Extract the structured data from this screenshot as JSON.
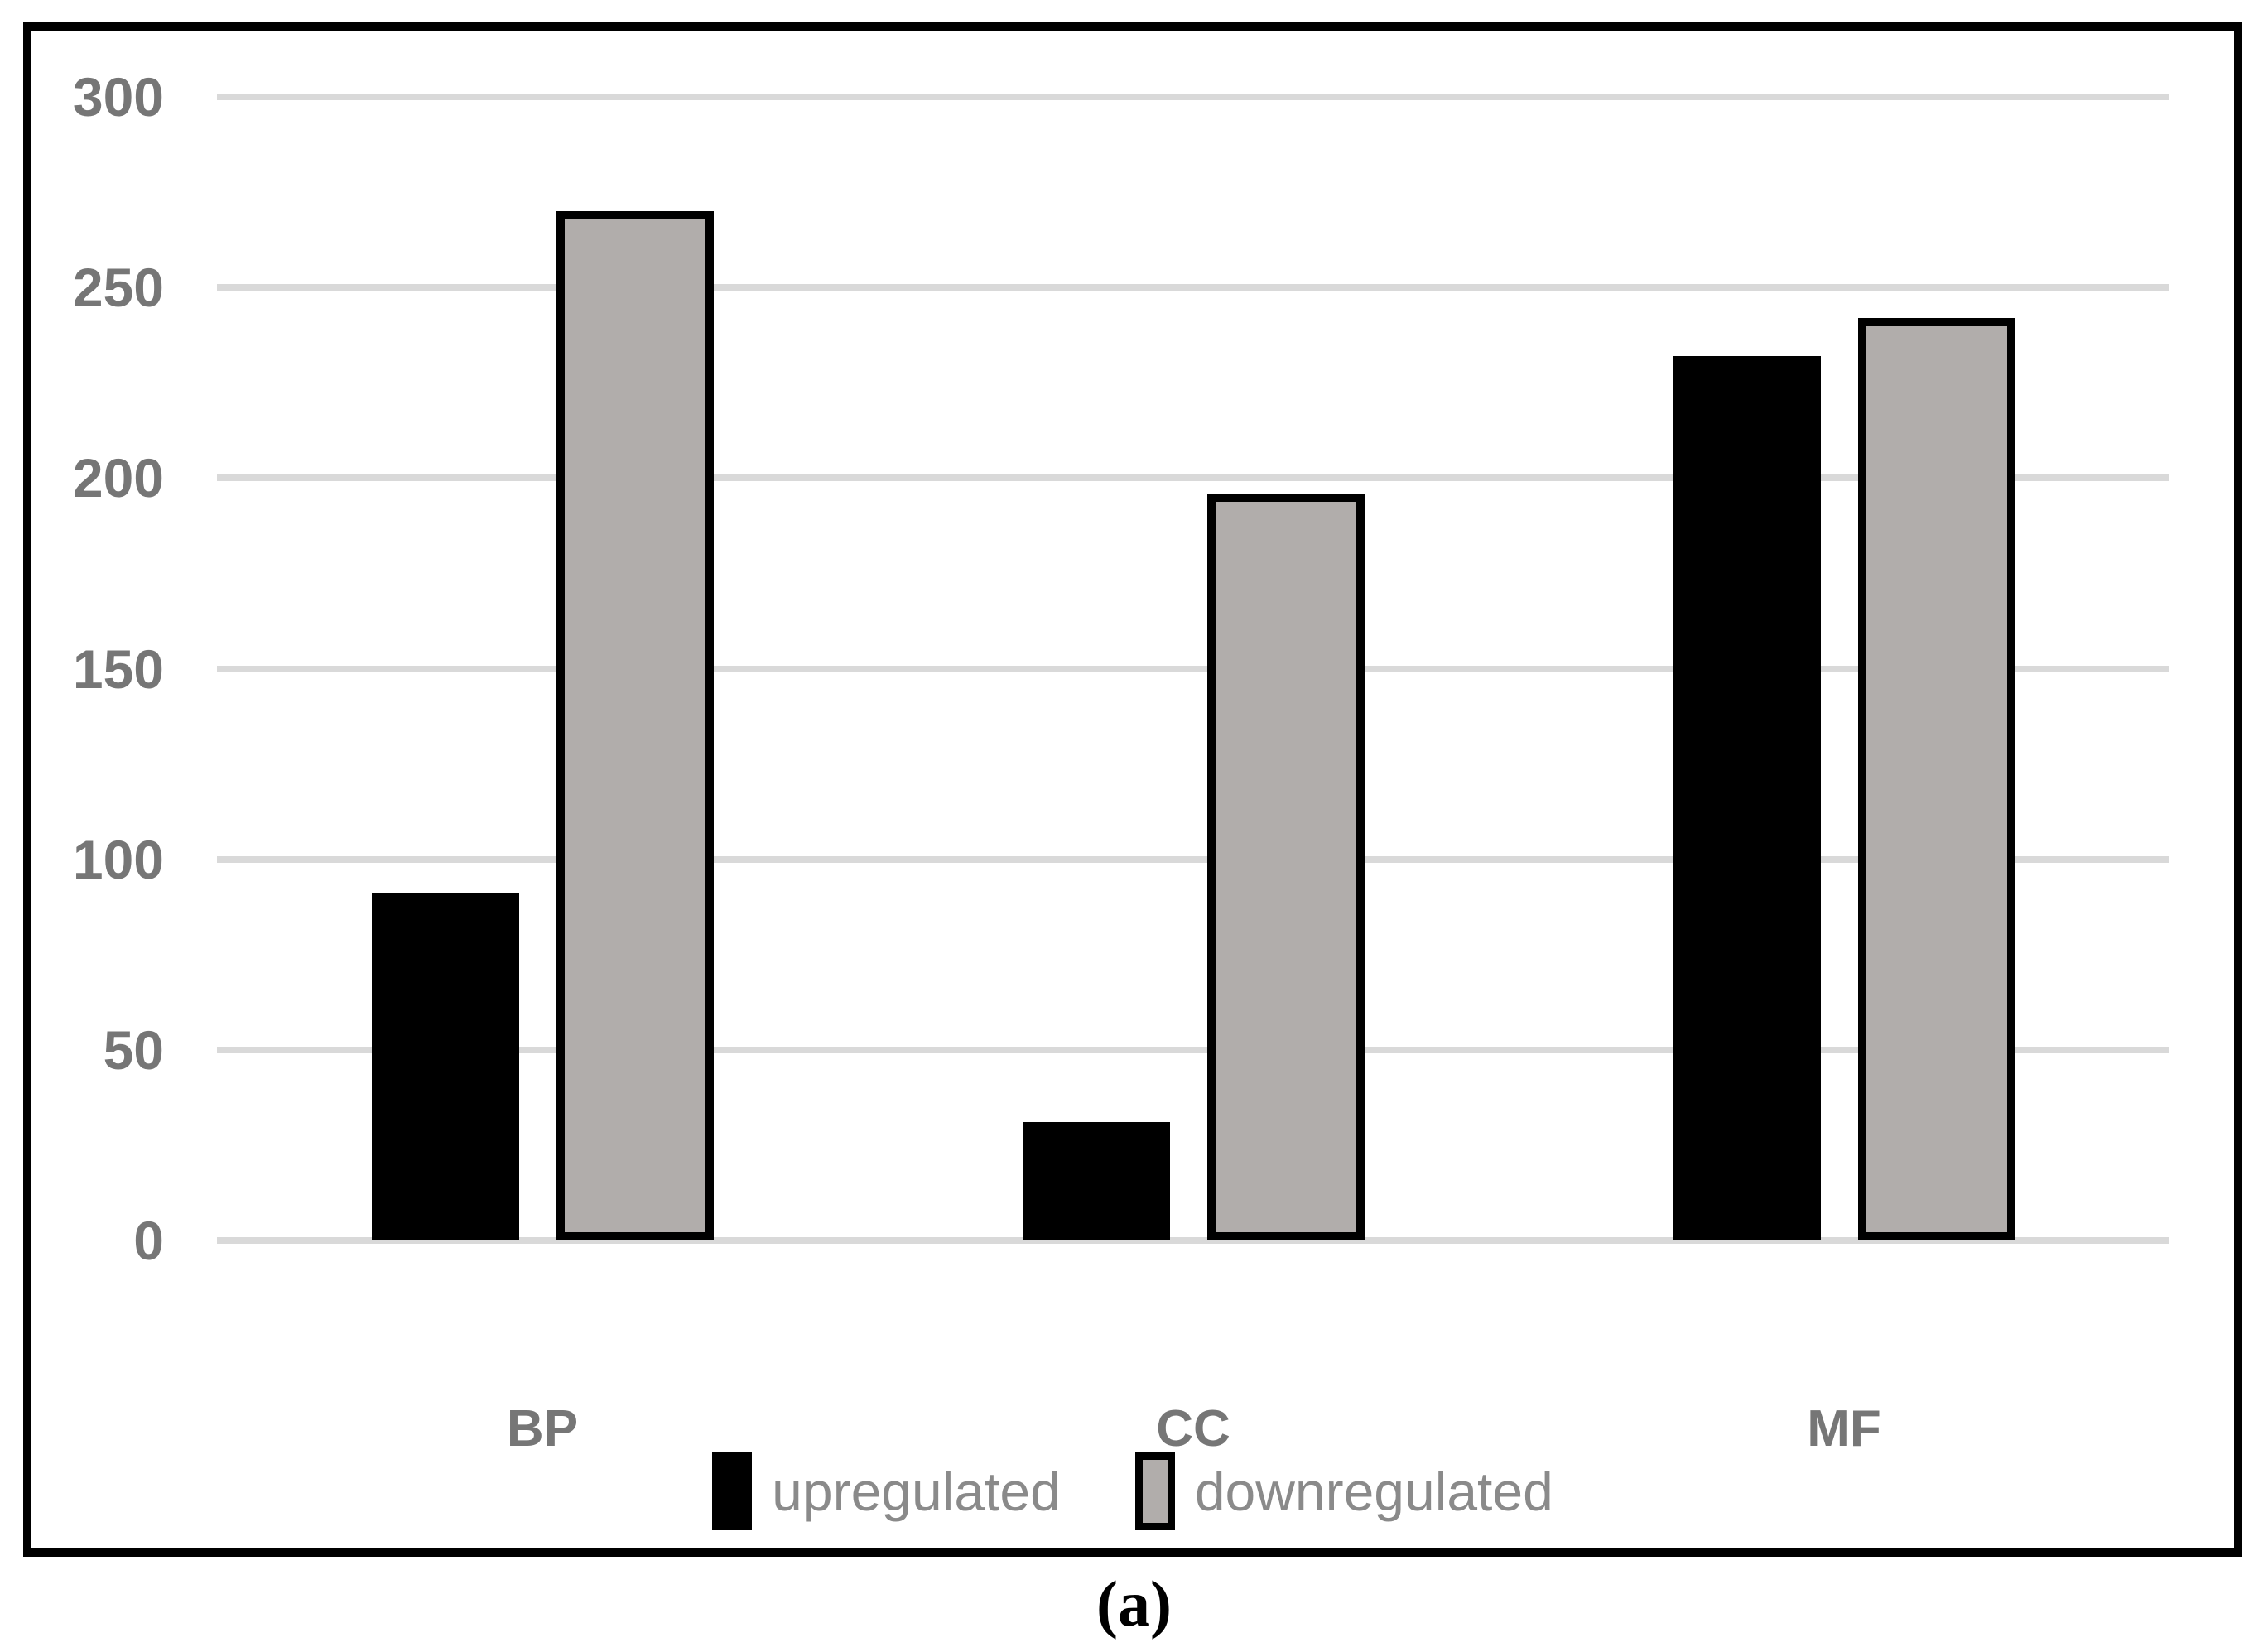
{
  "figure": {
    "caption": "(a)"
  },
  "chart_data": {
    "type": "bar",
    "title": "",
    "xlabel": "",
    "ylabel": "",
    "categories": [
      "BP",
      "CC",
      "MF"
    ],
    "series": [
      {
        "name": "upregulated",
        "fill": "#000000",
        "border": "#000000",
        "values": [
          91,
          31,
          232
        ]
      },
      {
        "name": "downregulated",
        "fill": "#b1adab",
        "border": "#000000",
        "values": [
          270,
          196,
          242
        ]
      }
    ],
    "ylim": [
      0,
      300
    ],
    "yticks": [
      300,
      250,
      200,
      150,
      100,
      50,
      0
    ],
    "grid": true,
    "legend_position": "bottom",
    "colors": {
      "gridline": "#d9d9d9",
      "axis_text": "#767676",
      "category_text": "#767676",
      "legend_text": "#8a8a8a",
      "frame_border": "#000000",
      "background": "#ffffff"
    }
  }
}
